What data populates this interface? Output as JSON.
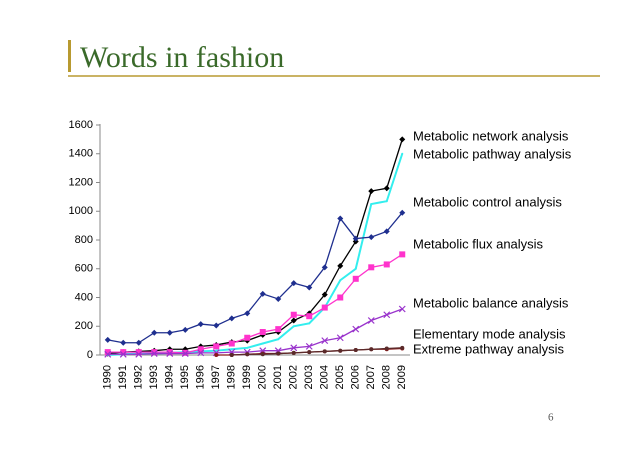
{
  "chart_data": {
    "type": "line",
    "title": "Words in fashion",
    "page_number": "6",
    "categories": [
      "1990",
      "1991",
      "1992",
      "1993",
      "1994",
      "1995",
      "1996",
      "1997",
      "1998",
      "1999",
      "2000",
      "2001",
      "2002",
      "2003",
      "2004",
      "2005",
      "2006",
      "2007",
      "2008",
      "2009"
    ],
    "ylim": [
      0,
      1600
    ],
    "yticks": [
      0,
      200,
      400,
      600,
      800,
      1000,
      1200,
      1400,
      1600
    ],
    "series": [
      {
        "name": "Metabolic network analysis",
        "color": "#000000",
        "marker": "diamond",
        "values": [
          10,
          20,
          25,
          30,
          40,
          40,
          60,
          70,
          90,
          100,
          140,
          160,
          240,
          290,
          420,
          620,
          790,
          1140,
          1160,
          1500
        ]
      },
      {
        "name": "Metabolic pathway analysis",
        "color": "#33eeee",
        "marker": "none",
        "values": [
          0,
          5,
          10,
          10,
          15,
          20,
          25,
          30,
          40,
          50,
          80,
          110,
          200,
          220,
          330,
          520,
          600,
          1050,
          1070,
          1400
        ]
      },
      {
        "name": "Metabolic control analysis",
        "color": "#1f2f8f",
        "marker": "diamond",
        "values": [
          105,
          85,
          85,
          155,
          155,
          175,
          215,
          205,
          255,
          290,
          425,
          390,
          500,
          470,
          610,
          950,
          810,
          820,
          860,
          990
        ]
      },
      {
        "name": "Metabolic flux analysis",
        "color": "#ff33cc",
        "marker": "square",
        "values": [
          20,
          20,
          20,
          20,
          20,
          15,
          40,
          60,
          80,
          120,
          160,
          180,
          280,
          270,
          330,
          400,
          530,
          610,
          630,
          700
        ]
      },
      {
        "name": "Metabolic balance analysis",
        "color": "#9933cc",
        "marker": "cross",
        "values": [
          5,
          5,
          5,
          10,
          10,
          10,
          15,
          15,
          20,
          20,
          30,
          30,
          50,
          60,
          100,
          120,
          180,
          240,
          280,
          320
        ]
      },
      {
        "name": "Elementary mode analysis",
        "color": "#8b1a1a",
        "marker": "circle",
        "values": [
          null,
          null,
          null,
          null,
          null,
          null,
          null,
          0,
          0,
          5,
          10,
          10,
          15,
          20,
          25,
          30,
          35,
          40,
          40,
          45
        ]
      },
      {
        "name": "Extreme pathway analysis",
        "color": "#5a2a2a",
        "marker": "circle",
        "values": [
          null,
          null,
          null,
          null,
          null,
          null,
          null,
          null,
          0,
          5,
          5,
          10,
          15,
          20,
          25,
          30,
          35,
          40,
          45,
          50
        ]
      }
    ]
  }
}
